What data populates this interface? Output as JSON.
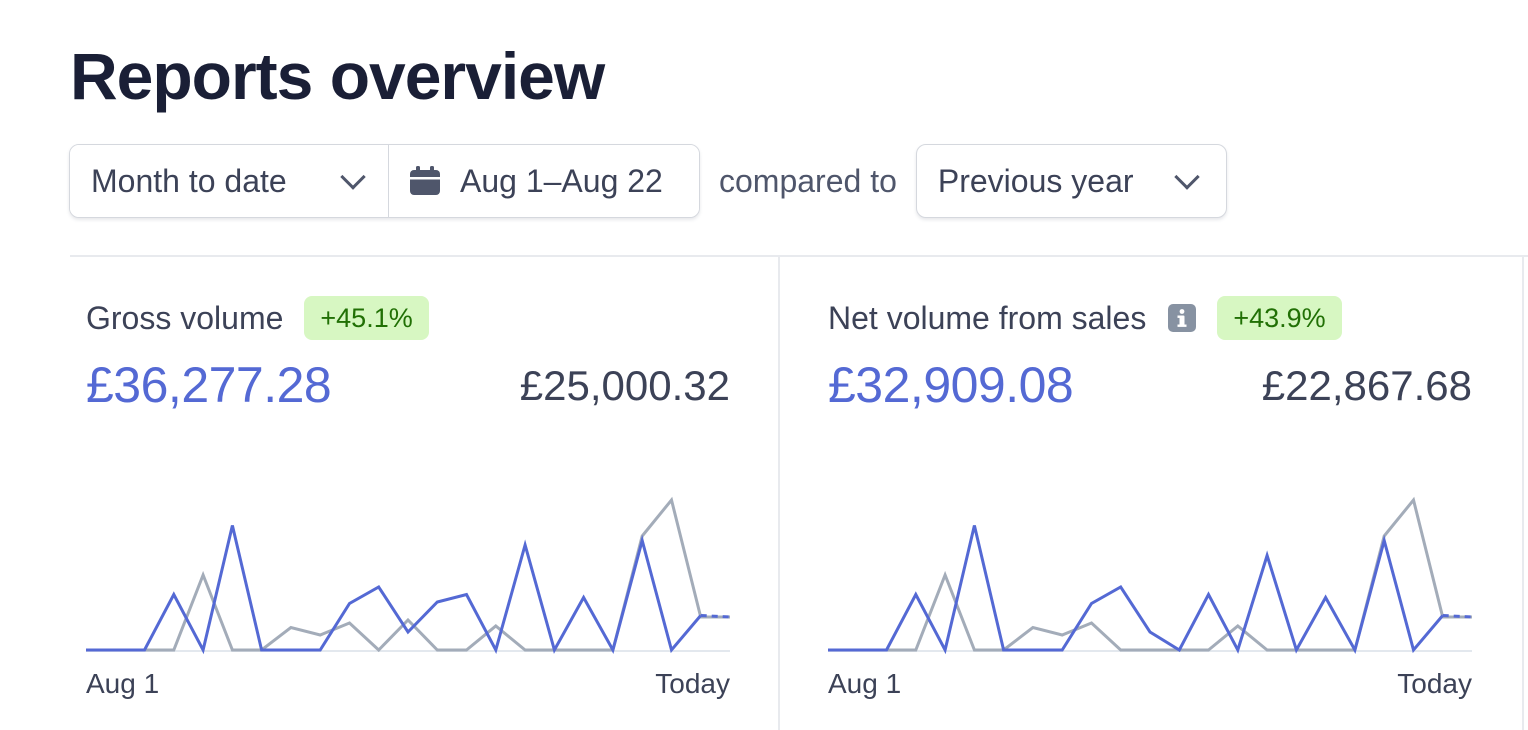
{
  "page_title": "Reports overview",
  "filters": {
    "period_label": "Month to date",
    "date_range": "Aug 1–Aug 22",
    "compared_to_label": "compared to",
    "comparison_label": "Previous year"
  },
  "colors": {
    "current_series": "#5469d4",
    "previous_series": "#a3acb9",
    "badge_bg": "#d7f7c2",
    "badge_text": "#217005"
  },
  "cards": [
    {
      "title": "Gross volume",
      "has_info_icon": false,
      "change_badge": "+45.1%",
      "current_value": "£36,277.28",
      "previous_value": "£25,000.32",
      "x_start_label": "Aug 1",
      "x_end_label": "Today"
    },
    {
      "title": "Net volume from sales",
      "has_info_icon": true,
      "change_badge": "+43.9%",
      "current_value": "£32,909.08",
      "previous_value": "£22,867.68",
      "x_start_label": "Aug 1",
      "x_end_label": "Today"
    }
  ],
  "chart_data": [
    {
      "type": "line",
      "x": [
        1,
        2,
        3,
        4,
        5,
        6,
        7,
        8,
        9,
        10,
        11,
        12,
        13,
        14,
        15,
        16,
        17,
        18,
        19,
        20,
        21,
        22,
        23
      ],
      "x_tick_labels": [
        "Aug 1",
        "Today"
      ],
      "ylim": [
        0,
        100
      ],
      "grid": false,
      "legend": "none",
      "series": [
        {
          "role": "current",
          "values": [
            0,
            0,
            0,
            37,
            0,
            83,
            0,
            0,
            0,
            31,
            42,
            12,
            32,
            37,
            0,
            70,
            0,
            35,
            0,
            73,
            0,
            23,
            22
          ],
          "dashed_from_index": 21
        },
        {
          "role": "previous",
          "values": [
            0,
            0,
            0,
            0,
            50,
            0,
            0,
            15,
            10,
            18,
            0,
            20,
            0,
            0,
            16,
            0,
            0,
            0,
            0,
            76,
            100,
            22,
            22
          ]
        }
      ]
    },
    {
      "type": "line",
      "x": [
        1,
        2,
        3,
        4,
        5,
        6,
        7,
        8,
        9,
        10,
        11,
        12,
        13,
        14,
        15,
        16,
        17,
        18,
        19,
        20,
        21,
        22,
        23
      ],
      "x_tick_labels": [
        "Aug 1",
        "Today"
      ],
      "ylim": [
        0,
        100
      ],
      "grid": false,
      "legend": "none",
      "series": [
        {
          "role": "current",
          "values": [
            0,
            0,
            0,
            37,
            0,
            83,
            0,
            0,
            0,
            31,
            42,
            12,
            0,
            37,
            0,
            63,
            0,
            35,
            0,
            73,
            0,
            23,
            22
          ],
          "dashed_from_index": 21
        },
        {
          "role": "previous",
          "values": [
            0,
            0,
            0,
            0,
            50,
            0,
            0,
            15,
            10,
            18,
            0,
            0,
            0,
            0,
            16,
            0,
            0,
            0,
            0,
            76,
            100,
            22,
            22
          ]
        }
      ]
    }
  ]
}
